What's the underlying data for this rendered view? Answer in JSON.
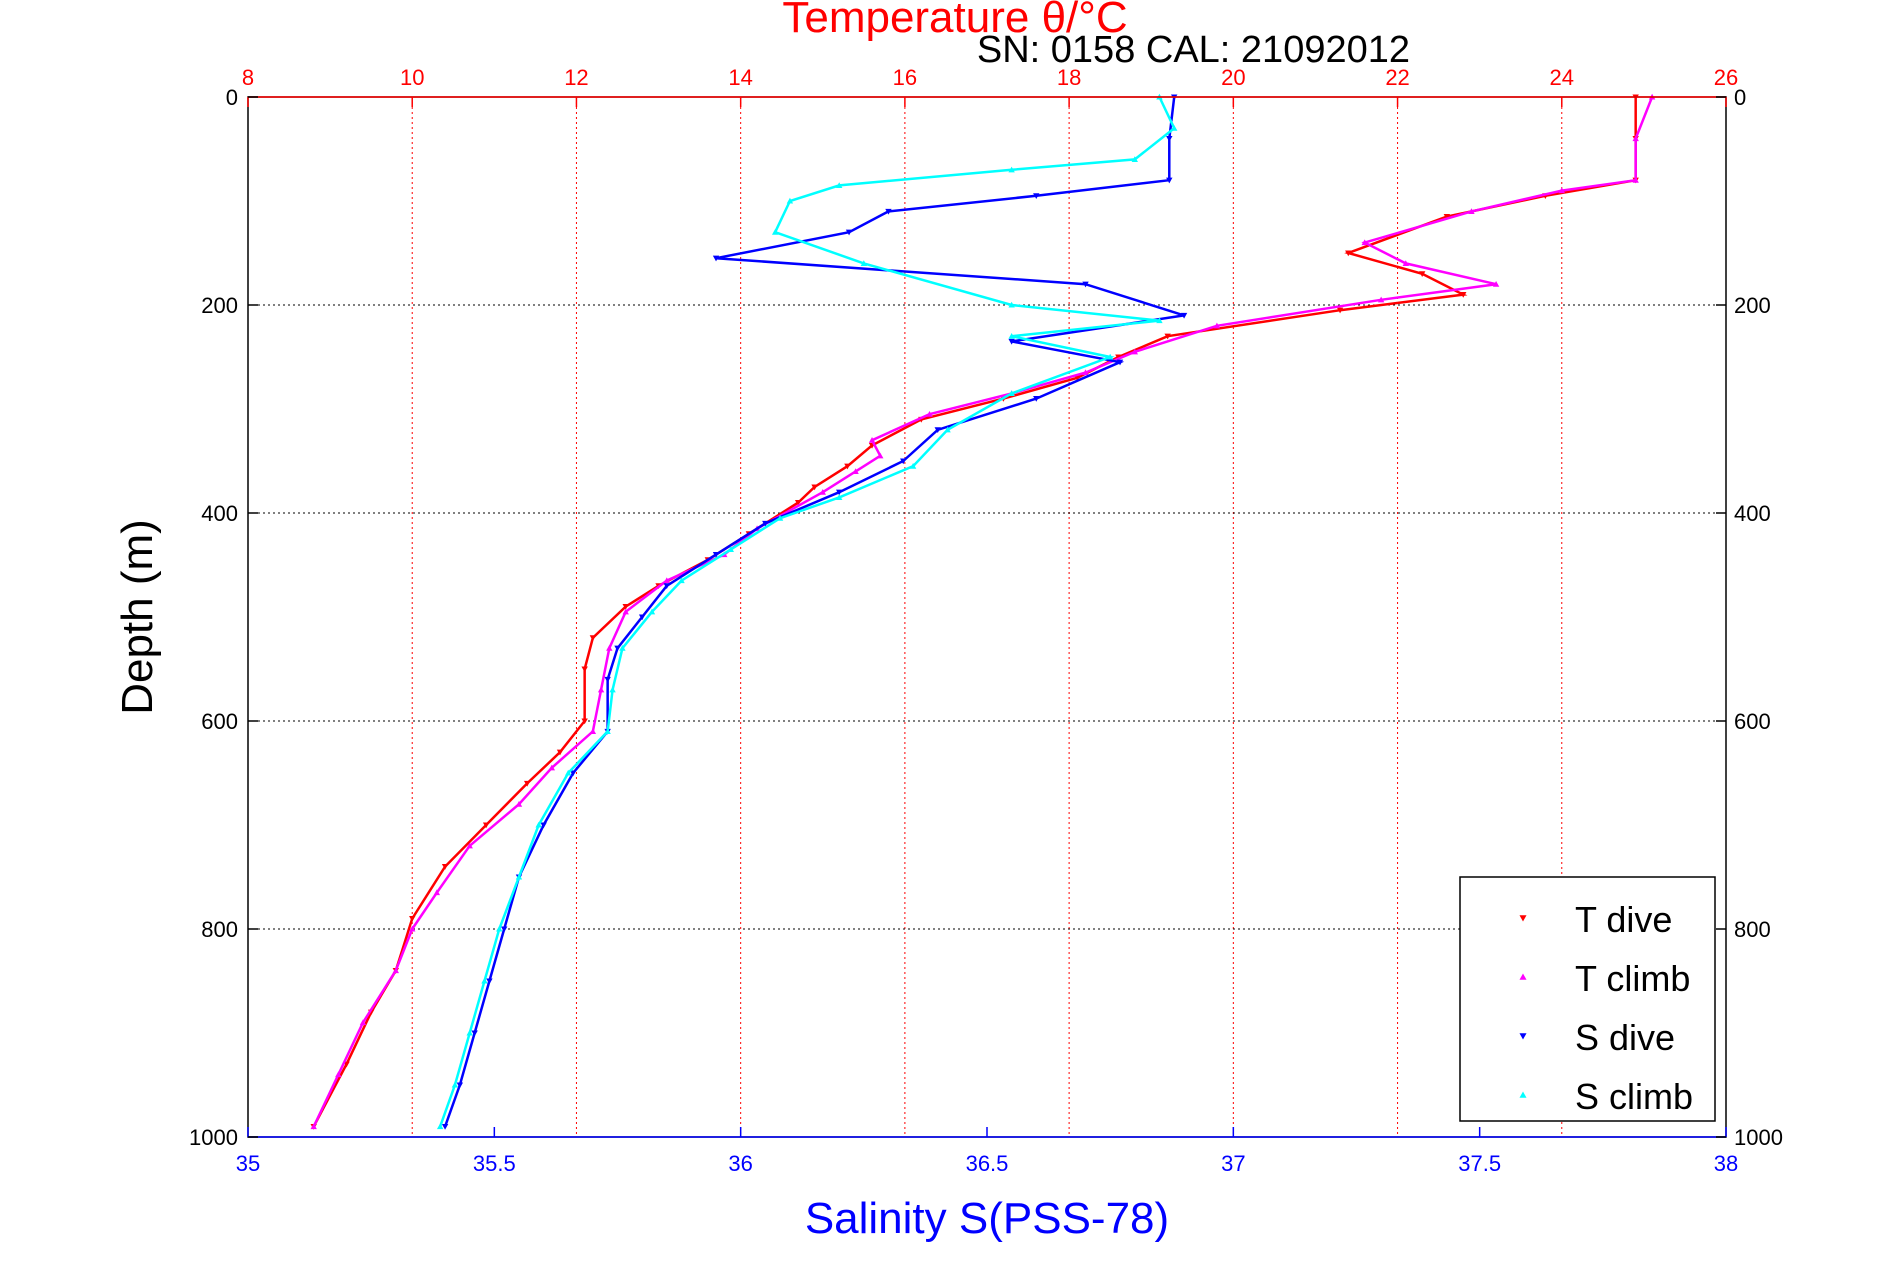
{
  "chart_data": {
    "type": "scatter",
    "annotation": "SN: 0158  CAL: 21092012",
    "top_axis": {
      "label": "Temperature θ/°C",
      "range": [
        8,
        26
      ],
      "ticks": [
        "8",
        "10",
        "12",
        "14",
        "16",
        "18",
        "20",
        "22",
        "24",
        "26"
      ],
      "color": "#ff0000"
    },
    "bottom_axis": {
      "label": "Salinity S(PSS-78)",
      "range": [
        35,
        38
      ],
      "ticks": [
        "35",
        "35.5",
        "36",
        "36.5",
        "37",
        "37.5",
        "38"
      ],
      "color": "#0000ff"
    },
    "y_axis": {
      "label": "Depth (m)",
      "range": [
        0,
        1000
      ],
      "inverted": true,
      "ticks": [
        "0",
        "200",
        "400",
        "600",
        "800",
        "1000"
      ]
    },
    "grid": true,
    "legend": {
      "placement": "bottom-right",
      "entries": [
        "T dive",
        "T climb",
        "S dive",
        "S climb"
      ]
    },
    "series": [
      {
        "name": "T dive",
        "axis": "top",
        "color": "#ff0000",
        "marker": "triangle-down",
        "points": [
          [
            24.9,
            0
          ],
          [
            24.9,
            40
          ],
          [
            24.9,
            80
          ],
          [
            23.8,
            95
          ],
          [
            22.6,
            115
          ],
          [
            21.4,
            150
          ],
          [
            22.3,
            170
          ],
          [
            22.8,
            190
          ],
          [
            21.3,
            205
          ],
          [
            19.2,
            230
          ],
          [
            18.6,
            250
          ],
          [
            18.1,
            270
          ],
          [
            17.2,
            290
          ],
          [
            16.2,
            310
          ],
          [
            15.6,
            335
          ],
          [
            15.3,
            355
          ],
          [
            14.9,
            375
          ],
          [
            14.7,
            390
          ],
          [
            14.1,
            420
          ],
          [
            13.6,
            445
          ],
          [
            13.0,
            470
          ],
          [
            12.6,
            490
          ],
          [
            12.2,
            520
          ],
          [
            12.1,
            550
          ],
          [
            12.1,
            600
          ],
          [
            11.8,
            630
          ],
          [
            11.4,
            660
          ],
          [
            10.9,
            700
          ],
          [
            10.4,
            740
          ],
          [
            10.0,
            790
          ],
          [
            9.8,
            840
          ],
          [
            9.5,
            880
          ],
          [
            9.2,
            930
          ],
          [
            8.8,
            990
          ]
        ]
      },
      {
        "name": "T climb",
        "axis": "top",
        "color": "#ff00ff",
        "marker": "triangle-up",
        "points": [
          [
            25.1,
            0
          ],
          [
            24.9,
            40
          ],
          [
            24.9,
            80
          ],
          [
            24.0,
            90
          ],
          [
            22.9,
            110
          ],
          [
            21.6,
            140
          ],
          [
            22.1,
            160
          ],
          [
            23.2,
            180
          ],
          [
            21.8,
            195
          ],
          [
            19.8,
            220
          ],
          [
            18.8,
            245
          ],
          [
            18.2,
            265
          ],
          [
            17.3,
            285
          ],
          [
            16.3,
            305
          ],
          [
            15.6,
            330
          ],
          [
            15.7,
            345
          ],
          [
            15.4,
            360
          ],
          [
            15.0,
            380
          ],
          [
            14.2,
            415
          ],
          [
            13.8,
            440
          ],
          [
            13.1,
            465
          ],
          [
            12.6,
            495
          ],
          [
            12.4,
            530
          ],
          [
            12.3,
            570
          ],
          [
            12.2,
            610
          ],
          [
            11.7,
            645
          ],
          [
            11.3,
            680
          ],
          [
            10.7,
            720
          ],
          [
            10.3,
            765
          ],
          [
            10.0,
            800
          ],
          [
            9.8,
            840
          ],
          [
            9.4,
            890
          ],
          [
            9.1,
            940
          ],
          [
            8.8,
            990
          ]
        ]
      },
      {
        "name": "S dive",
        "axis": "bottom",
        "color": "#0000ff",
        "marker": "triangle-down",
        "points": [
          [
            36.88,
            0
          ],
          [
            36.87,
            40
          ],
          [
            36.87,
            80
          ],
          [
            36.6,
            95
          ],
          [
            36.3,
            110
          ],
          [
            36.22,
            130
          ],
          [
            35.95,
            155
          ],
          [
            36.7,
            180
          ],
          [
            36.9,
            210
          ],
          [
            36.55,
            235
          ],
          [
            36.77,
            255
          ],
          [
            36.6,
            290
          ],
          [
            36.4,
            320
          ],
          [
            36.33,
            350
          ],
          [
            36.2,
            380
          ],
          [
            36.05,
            410
          ],
          [
            35.95,
            440
          ],
          [
            35.85,
            470
          ],
          [
            35.8,
            500
          ],
          [
            35.75,
            530
          ],
          [
            35.73,
            560
          ],
          [
            35.73,
            610
          ],
          [
            35.66,
            650
          ],
          [
            35.6,
            700
          ],
          [
            35.55,
            750
          ],
          [
            35.52,
            800
          ],
          [
            35.49,
            850
          ],
          [
            35.46,
            900
          ],
          [
            35.43,
            950
          ],
          [
            35.4,
            990
          ]
        ]
      },
      {
        "name": "S climb",
        "axis": "bottom",
        "color": "#00ffff",
        "marker": "triangle-up",
        "points": [
          [
            36.85,
            0
          ],
          [
            36.88,
            30
          ],
          [
            36.8,
            60
          ],
          [
            36.55,
            70
          ],
          [
            36.2,
            85
          ],
          [
            36.1,
            100
          ],
          [
            36.07,
            130
          ],
          [
            36.25,
            160
          ],
          [
            36.55,
            200
          ],
          [
            36.85,
            215
          ],
          [
            36.55,
            230
          ],
          [
            36.75,
            250
          ],
          [
            36.55,
            285
          ],
          [
            36.42,
            320
          ],
          [
            36.35,
            355
          ],
          [
            36.2,
            385
          ],
          [
            36.08,
            405
          ],
          [
            35.98,
            435
          ],
          [
            35.88,
            465
          ],
          [
            35.82,
            495
          ],
          [
            35.76,
            530
          ],
          [
            35.74,
            570
          ],
          [
            35.73,
            610
          ],
          [
            35.65,
            650
          ],
          [
            35.59,
            700
          ],
          [
            35.55,
            750
          ],
          [
            35.51,
            800
          ],
          [
            35.48,
            850
          ],
          [
            35.45,
            900
          ],
          [
            35.42,
            950
          ],
          [
            35.39,
            990
          ]
        ]
      }
    ]
  }
}
